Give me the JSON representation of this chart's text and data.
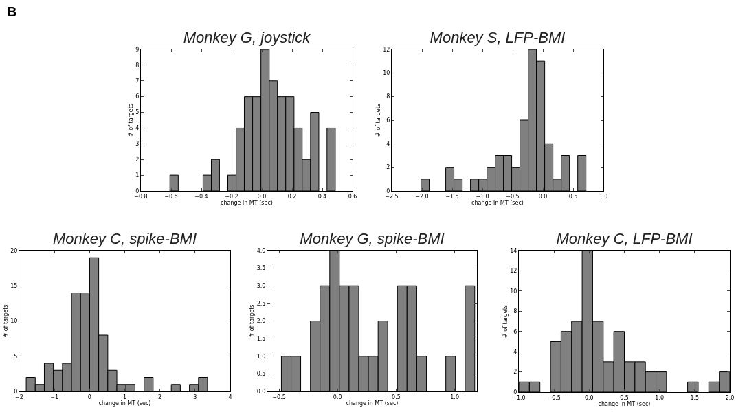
{
  "chart_data": [
    {
      "type": "histogram",
      "title": "Monkey G, joystick",
      "xlabel": "change in MT (sec)",
      "ylabel": "# of targets",
      "annotations": [
        "B"
      ],
      "color": "#808080",
      "bins": [
        -0.608,
        -0.553,
        -0.498,
        -0.444,
        -0.389,
        -0.334,
        -0.28,
        -0.225,
        -0.17,
        -0.116,
        -0.061,
        -0.006,
        0.049,
        0.103,
        0.158,
        0.213,
        0.267,
        0.322,
        0.377,
        0.431,
        0.486
      ],
      "values": [
        1,
        0,
        0,
        0,
        1,
        2,
        0,
        1,
        4,
        6,
        6,
        9,
        7,
        6,
        6,
        4,
        2,
        5,
        0,
        4
      ],
      "xlim": [
        -0.8,
        0.6
      ],
      "xticks": [
        {
          "value": -0.8,
          "label": "−0.8"
        },
        {
          "value": -0.6,
          "label": "−0.6"
        },
        {
          "value": -0.4,
          "label": "−0.4"
        },
        {
          "value": -0.2,
          "label": "−0.2"
        },
        {
          "value": 0,
          "label": "0.0"
        },
        {
          "value": 0.2,
          "label": "0.2"
        },
        {
          "value": 0.4,
          "label": "0.4"
        },
        {
          "value": 0.6,
          "label": "0.6"
        }
      ],
      "ylim": [
        0,
        9
      ],
      "yticks": [
        0,
        1,
        2,
        3,
        4,
        5,
        6,
        7,
        8,
        9
      ]
    },
    {
      "type": "histogram",
      "title": "Monkey S, LFP-BMI",
      "xlabel": "change in MT (sec)",
      "ylabel": "# of targets",
      "color": "#808080",
      "bins": [
        -2.016,
        -1.88,
        -1.743,
        -1.607,
        -1.471,
        -1.334,
        -1.198,
        -1.061,
        -0.925,
        -0.789,
        -0.652,
        -0.516,
        -0.38,
        -0.243,
        -0.107,
        0.03,
        0.166,
        0.303,
        0.439,
        0.576,
        0.712
      ],
      "values": [
        1,
        0,
        0,
        2,
        1,
        0,
        1,
        1,
        2,
        3,
        3,
        2,
        6,
        12,
        11,
        4,
        1,
        3,
        0,
        3
      ],
      "xlim": [
        -2.5,
        1.0
      ],
      "xticks": [
        {
          "value": -2.5,
          "label": "−2.5"
        },
        {
          "value": -2,
          "label": "−2.0"
        },
        {
          "value": -1.5,
          "label": "−1.5"
        },
        {
          "value": -1,
          "label": "−1.0"
        },
        {
          "value": -0.5,
          "label": "−0.5"
        },
        {
          "value": 0,
          "label": "0.0"
        },
        {
          "value": 0.5,
          "label": "0.5"
        },
        {
          "value": 1,
          "label": "1.0"
        }
      ],
      "ylim": [
        0,
        12
      ],
      "yticks": [
        0,
        2,
        4,
        6,
        8,
        10,
        12
      ]
    },
    {
      "type": "histogram",
      "title": "Monkey C, spike-BMI",
      "xlabel": "change in MT (sec)",
      "ylabel": "# of targets",
      "color": "#808080",
      "bins": [
        -1.803,
        -1.545,
        -1.287,
        -1.029,
        -0.771,
        -0.513,
        -0.256,
        0.002,
        0.26,
        0.518,
        0.776,
        1.034,
        1.292,
        1.55,
        1.808,
        2.066,
        2.323,
        2.581,
        2.839,
        3.097,
        3.355
      ],
      "values": [
        2,
        1,
        4,
        3,
        4,
        14,
        14,
        19,
        8,
        3,
        1,
        1,
        0,
        2,
        0,
        0,
        1,
        0,
        1,
        2
      ],
      "xlim": [
        -2,
        4
      ],
      "xticks": [
        {
          "value": -2,
          "label": "−2"
        },
        {
          "value": -1,
          "label": "−1"
        },
        0,
        1,
        2,
        3,
        4
      ],
      "ylim": [
        0,
        20
      ],
      "yticks": [
        0,
        5,
        10,
        15,
        20
      ]
    },
    {
      "type": "histogram",
      "title": "Monkey G, spike-BMI",
      "xlabel": "change in MT (sec)",
      "ylabel": "# of targets",
      "color": "#808080",
      "bins": [
        -0.48,
        -0.397,
        -0.315,
        -0.232,
        -0.15,
        -0.067,
        0.015,
        0.098,
        0.181,
        0.263,
        0.346,
        0.428,
        0.511,
        0.593,
        0.676,
        0.759,
        0.841,
        0.924,
        1.006,
        1.089,
        1.171
      ],
      "values": [
        1,
        1,
        0,
        2,
        3,
        4,
        3,
        3,
        1,
        1,
        2,
        0,
        3,
        3,
        1,
        0,
        0,
        1,
        0,
        3
      ],
      "xlim": [
        -0.6,
        1.19
      ],
      "xticks": [
        {
          "value": -0.5,
          "label": "−0.5"
        },
        {
          "value": 0,
          "label": "0.0"
        },
        {
          "value": 0.5,
          "label": "0.5"
        },
        {
          "value": 1,
          "label": "1.0"
        }
      ],
      "ylim": [
        0,
        4
      ],
      "yticks": [
        {
          "value": 0,
          "label": "0.0"
        },
        {
          "value": 0.5,
          "label": "0.5"
        },
        {
          "value": 1,
          "label": "1.0"
        },
        {
          "value": 1.5,
          "label": "1.5"
        },
        {
          "value": 2,
          "label": "2.0"
        },
        {
          "value": 2.5,
          "label": "2.5"
        },
        {
          "value": 3,
          "label": "3.0"
        },
        {
          "value": 3.5,
          "label": "3.5"
        },
        {
          "value": 4,
          "label": "4.0"
        }
      ]
    },
    {
      "type": "histogram",
      "title": "Monkey C, LFP-BMI",
      "xlabel": "change in MT (sec)",
      "ylabel": "# of targets",
      "color": "#808080",
      "bins": [
        -1.0,
        -0.85,
        -0.7,
        -0.55,
        -0.4,
        -0.25,
        -0.1,
        0.05,
        0.2,
        0.35,
        0.5,
        0.65,
        0.8,
        0.95,
        1.1,
        1.25,
        1.4,
        1.55,
        1.7,
        1.85,
        2.0
      ],
      "values": [
        1,
        1,
        0,
        5,
        6,
        7,
        14,
        7,
        3,
        6,
        3,
        3,
        2,
        2,
        0,
        0,
        1,
        0,
        1,
        2
      ],
      "xlim": [
        -1.0,
        2.0
      ],
      "xticks": [
        {
          "value": -1,
          "label": "−1.0"
        },
        {
          "value": -0.5,
          "label": "−0.5"
        },
        {
          "value": 0,
          "label": "0.0"
        },
        {
          "value": 0.5,
          "label": "0.5"
        },
        {
          "value": 1,
          "label": "1.0"
        },
        {
          "value": 1.5,
          "label": "1.5"
        },
        {
          "value": 2,
          "label": "2.0"
        }
      ],
      "ylim": [
        0,
        14
      ],
      "yticks": [
        0,
        2,
        4,
        6,
        8,
        10,
        12,
        14
      ]
    }
  ]
}
